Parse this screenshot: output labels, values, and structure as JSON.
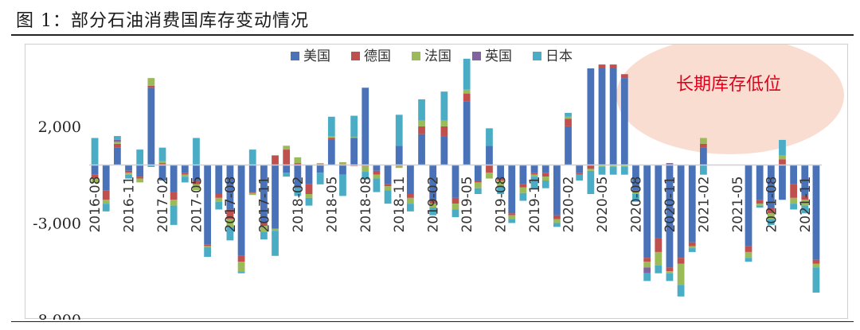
{
  "figure": {
    "title": "图 1：部分石油消费国库存变动情况"
  },
  "annotation": {
    "text": "长期库存低位",
    "text_color": "#e0001b",
    "bubble_color": "#f9d7c9"
  },
  "chart_data": {
    "type": "bar",
    "stacked": true,
    "title": "",
    "xlabel": "",
    "ylabel": "",
    "ylim": [
      -8000,
      5000
    ],
    "y_ticks": [
      2000,
      -3000,
      -8000
    ],
    "y_tick_labels": [
      "2,000",
      "-3,000",
      "-8,000"
    ],
    "legend_position": "top-center",
    "grid": false,
    "categories": [
      "2016-08",
      "2016-09",
      "2016-10",
      "2016-11",
      "2016-12",
      "2017-01",
      "2017-02",
      "2017-03",
      "2017-04",
      "2017-05",
      "2017-06",
      "2017-07",
      "2017-08",
      "2017-09",
      "2017-10",
      "2017-11",
      "2017-12",
      "2018-01",
      "2018-02",
      "2018-03",
      "2018-04",
      "2018-05",
      "2018-06",
      "2018-07",
      "2018-08",
      "2018-09",
      "2018-10",
      "2018-11",
      "2018-12",
      "2019-01",
      "2019-02",
      "2019-03",
      "2019-04",
      "2019-05",
      "2019-06",
      "2019-07",
      "2019-08",
      "2019-09",
      "2019-10",
      "2019-11",
      "2019-12",
      "2020-01",
      "2020-02",
      "2020-03",
      "2020-04",
      "2020-05",
      "2020-06",
      "2020-07",
      "2020-08",
      "2020-09",
      "2020-10",
      "2020-11",
      "2020-12",
      "2021-01",
      "2021-02",
      "2021-03",
      "2021-04",
      "2021-05",
      "2021-06",
      "2021-07",
      "2021-08",
      "2021-09",
      "2021-10",
      "2021-11",
      "2021-12"
    ],
    "tick_labels": [
      "2016-08",
      "2016-11",
      "2017-02",
      "2017-05",
      "2017-08",
      "2017-11",
      "2018-02",
      "2018-05",
      "2018-08",
      "2018-11",
      "2019-02",
      "2019-05",
      "2019-08",
      "2019-11",
      "2020-02",
      "2020-05",
      "2020-08",
      "2020-11",
      "2021-02",
      "2021-05",
      "2021-08",
      "2021-11"
    ],
    "series": [
      {
        "name": "美国",
        "color": "#4a72b8",
        "values": [
          -500,
          -1300,
          900,
          -300,
          -600,
          4000,
          -800,
          -1400,
          -400,
          -800,
          -4100,
          -1500,
          -2300,
          -4700,
          -1400,
          -3000,
          -3300,
          -400,
          -1200,
          -1000,
          -400,
          1300,
          -500,
          1400,
          4000,
          -300,
          -1000,
          1000,
          -1500,
          1600,
          -1800,
          1500,
          -1700,
          3300,
          -800,
          1000,
          -700,
          -2500,
          -1000,
          -400,
          -400,
          -2600,
          2000,
          -400,
          5000,
          5000,
          5000,
          4500,
          -1300,
          -4800,
          -3800,
          -5300,
          -4800,
          -4000,
          900,
          0,
          0,
          0,
          -4200,
          -1800,
          -2200,
          -1800,
          -1000,
          -1600,
          -4900
        ]
      },
      {
        "name": "德国",
        "color": "#c0504d",
        "values": [
          -200,
          -500,
          200,
          -100,
          -100,
          100,
          100,
          -400,
          -100,
          -200,
          -100,
          -200,
          -500,
          -300,
          -50,
          -150,
          500,
          800,
          100,
          -500,
          50,
          100,
          50,
          -50,
          -50,
          -200,
          -100,
          -50,
          -200,
          400,
          -200,
          500,
          -300,
          400,
          -100,
          -400,
          -100,
          -100,
          -150,
          -100,
          -200,
          -200,
          400,
          -100,
          -200,
          200,
          200,
          200,
          -100,
          -200,
          -700,
          -200,
          -300,
          -200,
          200,
          0,
          0,
          0,
          -300,
          -200,
          -300,
          300,
          -700,
          -200,
          -200
        ]
      },
      {
        "name": "法国",
        "color": "#9bbb59",
        "values": [
          -200,
          -200,
          100,
          -100,
          -200,
          400,
          100,
          -300,
          -100,
          -300,
          -50,
          -200,
          -400,
          -500,
          -100,
          -300,
          -100,
          200,
          300,
          -200,
          50,
          100,
          100,
          50,
          -300,
          -200,
          -200,
          -100,
          -300,
          300,
          -200,
          300,
          -300,
          200,
          -300,
          -300,
          -300,
          -200,
          -300,
          -100,
          -200,
          -200,
          100,
          0,
          -100,
          -100,
          -100,
          -100,
          -100,
          -300,
          -700,
          -100,
          -1100,
          -100,
          300,
          0,
          0,
          0,
          -300,
          -100,
          -300,
          200,
          -300,
          -300,
          -200
        ]
      },
      {
        "name": "英国",
        "color": "#8064a2",
        "values": [
          0,
          0,
          100,
          0,
          0,
          0,
          0,
          0,
          0,
          0,
          0,
          0,
          0,
          0,
          0,
          0,
          0,
          0,
          0,
          0,
          0,
          0,
          0,
          0,
          0,
          0,
          0,
          0,
          0,
          0,
          0,
          0,
          0,
          0,
          0,
          0,
          0,
          0,
          0,
          0,
          0,
          0,
          0,
          0,
          0,
          0,
          0,
          0,
          0,
          -300,
          0,
          100,
          0,
          0,
          0,
          0,
          0,
          0,
          0,
          0,
          0,
          0,
          0,
          0,
          0
        ]
      },
      {
        "name": "日本",
        "color": "#4bacc6",
        "values": [
          1400,
          -400,
          200,
          -200,
          800,
          -100,
          700,
          -1000,
          -300,
          1400,
          -500,
          -400,
          -700,
          -100,
          800,
          -400,
          -1300,
          -200,
          -400,
          -400,
          -600,
          1000,
          -1100,
          1100,
          -400,
          -700,
          -700,
          1600,
          -400,
          1100,
          -400,
          1500,
          -400,
          1600,
          -300,
          900,
          -400,
          -200,
          -400,
          -600,
          -400,
          -200,
          200,
          -300,
          -1200,
          -400,
          -400,
          -400,
          -400,
          -400,
          -400,
          -400,
          -600,
          -200,
          -500,
          0,
          0,
          0,
          -200,
          -100,
          -300,
          800,
          -300,
          -400,
          -1300
        ]
      }
    ]
  }
}
